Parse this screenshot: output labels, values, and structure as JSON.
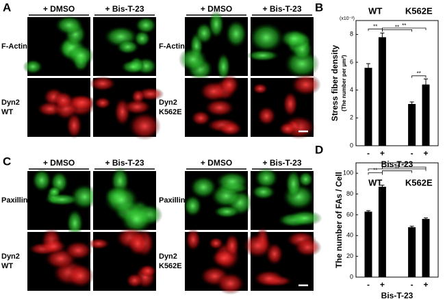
{
  "figure_panels": [
    {
      "letter": "A",
      "groups": [
        {
          "columns": [
            "+ DMSO",
            "+ Bis-T-23"
          ],
          "rows": [
            [
              "F-Actin"
            ],
            [
              "Dyn2",
              "WT"
            ]
          ]
        },
        {
          "columns": [
            "+ DMSO",
            "+ Bis-T-23"
          ],
          "rows": [
            [
              "F-Actin"
            ],
            [
              "Dyn2",
              "K562E"
            ]
          ]
        }
      ]
    },
    {
      "letter": "C",
      "groups": [
        {
          "columns": [
            "+ DMSO",
            "+ Bis-T-23"
          ],
          "rows": [
            [
              "Paxillin"
            ],
            [
              "Dyn2",
              "WT"
            ]
          ]
        },
        {
          "columns": [
            "+ DMSO",
            "+ Bis-T-23"
          ],
          "rows": [
            [
              "Paxillin"
            ],
            [
              "Dyn2",
              "K562E"
            ]
          ]
        }
      ]
    }
  ],
  "chart_data": [
    {
      "type": "bar",
      "panel_label": "B",
      "y_label": "Stress fiber density",
      "y_sublabel": "(The number per µm²)",
      "y_unit_note": "(x10⁻²)",
      "groups": [
        "WT",
        "K562E"
      ],
      "categories": [
        "-",
        "+",
        "-",
        "+"
      ],
      "x_label": "Bis-T-23",
      "values": [
        5.6,
        7.8,
        3.0,
        4.4
      ],
      "errors": [
        0.3,
        0.3,
        0.15,
        0.4
      ],
      "color": "#000000",
      "ylim": [
        0,
        9
      ],
      "yticks": [
        0,
        2,
        4,
        6,
        8
      ],
      "significance_labels": [
        "**",
        "**",
        "**",
        "**"
      ]
    },
    {
      "type": "bar",
      "panel_label": "D",
      "y_label": "The number of FAs / Cell",
      "groups": [
        "WT",
        "K562E"
      ],
      "categories": [
        "-",
        "+",
        "-",
        "+"
      ],
      "x_label": "Bis-T-23",
      "values": [
        63,
        87,
        48,
        56
      ],
      "errors": [
        1,
        1.5,
        1,
        1
      ],
      "color": "#000000",
      "ylim": [
        0,
        110
      ],
      "yticks": [
        0,
        20,
        40,
        60,
        80,
        100
      ],
      "significance_labels": [
        "**",
        "**",
        "**",
        "**"
      ]
    }
  ]
}
